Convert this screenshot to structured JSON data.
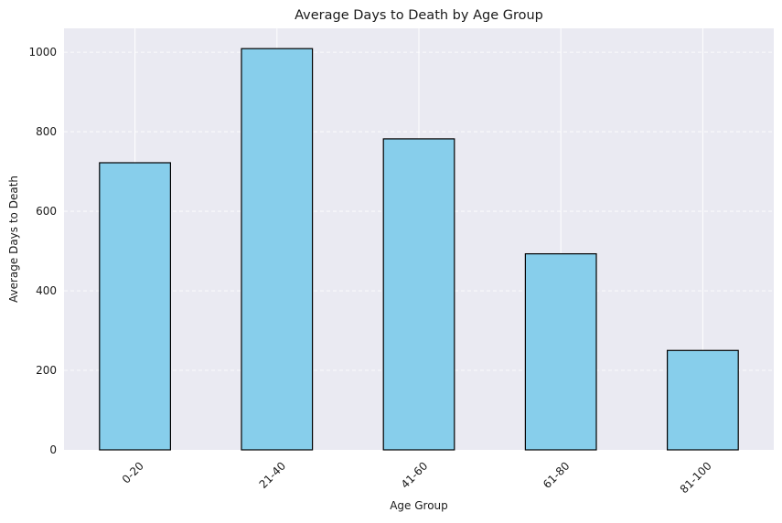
{
  "chart_data": {
    "type": "bar",
    "title": "Average Days to Death by Age Group",
    "xlabel": "Age Group",
    "ylabel": "Average Days to Death",
    "categories": [
      "0-20",
      "21-40",
      "41-60",
      "61-80",
      "81-100"
    ],
    "values": [
      722,
      1009,
      782,
      493,
      250
    ],
    "ylim": [
      0,
      1060
    ],
    "yticks": [
      0,
      200,
      400,
      600,
      800,
      1000
    ],
    "grid": true,
    "colors": {
      "bar": "#87ceeb",
      "bar_edge": "#000000",
      "background": "#eaeaf2",
      "grid": "#ffffff"
    }
  }
}
